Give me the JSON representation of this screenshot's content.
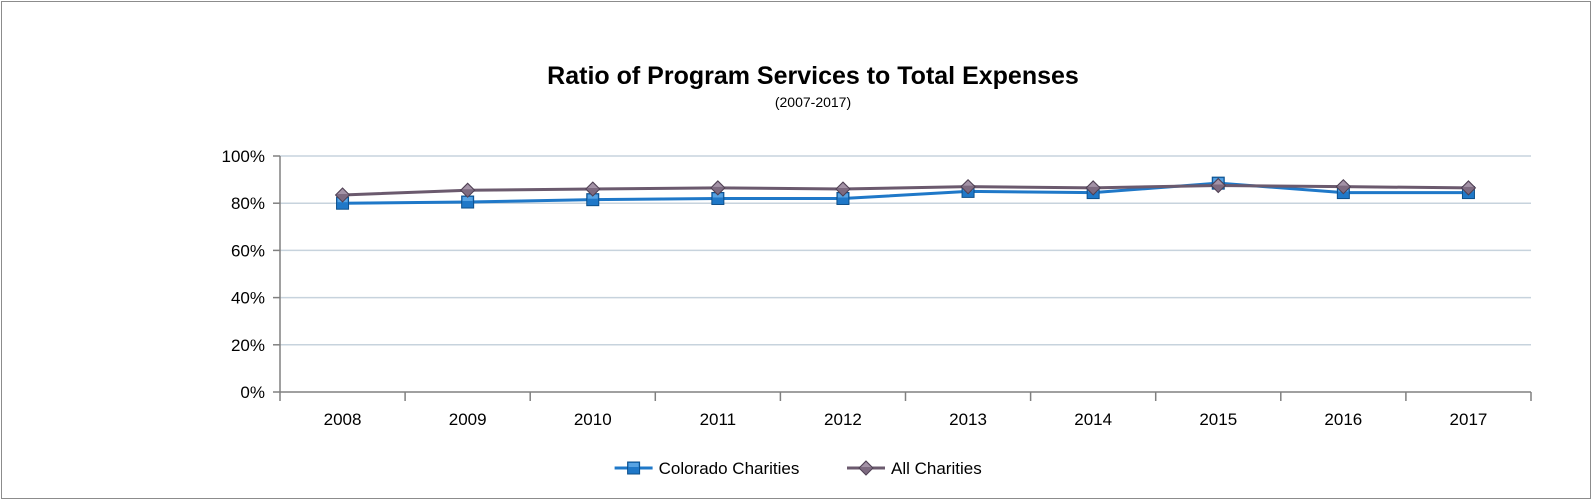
{
  "chart_data": {
    "type": "line",
    "title": "Ratio of Program Services to Total Expenses",
    "subtitle": "(2007-2017)",
    "xlabel": "",
    "ylabel": "",
    "categories": [
      "2008",
      "2009",
      "2010",
      "2011",
      "2012",
      "2013",
      "2014",
      "2015",
      "2016",
      "2017"
    ],
    "ylim": [
      0,
      1
    ],
    "yticks": [
      "0%",
      "20%",
      "40%",
      "60%",
      "80%",
      "100%"
    ],
    "grid": true,
    "legend_position": "bottom",
    "series": [
      {
        "name": "Colorado Charities",
        "color": "#1f78c8",
        "marker": "square",
        "values": [
          0.8,
          0.805,
          0.815,
          0.82,
          0.82,
          0.85,
          0.845,
          0.885,
          0.845,
          0.845
        ]
      },
      {
        "name": "All Charities",
        "color": "#6b5a6e",
        "marker": "diamond",
        "values": [
          0.835,
          0.855,
          0.86,
          0.865,
          0.86,
          0.87,
          0.865,
          0.875,
          0.87,
          0.865
        ]
      }
    ]
  }
}
